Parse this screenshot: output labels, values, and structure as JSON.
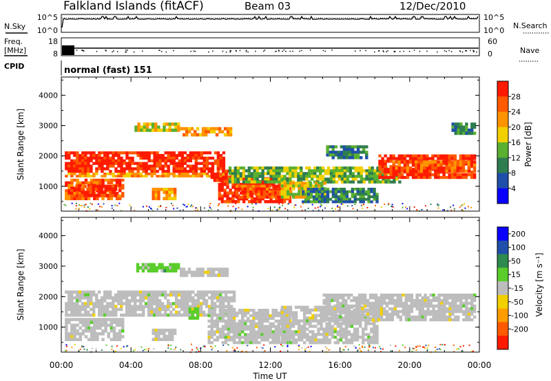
{
  "header": {
    "station": "Falkland Islands (fitACF)",
    "beam": "Beam 03",
    "date": "12/Dec/2010"
  },
  "top_panels": {
    "nsky": {
      "label": "N.Sky",
      "right_label": "N.Search",
      "left_ticks": [
        "10^5",
        "10^0"
      ],
      "right_ticks": [
        "10^5",
        "10^0"
      ]
    },
    "freq": {
      "label_line1": "Freq.",
      "label_line2": "[MHz]",
      "right_label": "Nave",
      "left_ticks": [
        "18",
        "8"
      ],
      "right_ticks": [
        "60",
        "0"
      ]
    },
    "cpid": {
      "label": "CPID",
      "text": "normal (fast) 151"
    }
  },
  "colors": {
    "power": [
      "#0a00ff",
      "#1f4faa",
      "#2e7d50",
      "#5ab030",
      "#f2d000",
      "#ff9400",
      "#ff5a00",
      "#ff1a00"
    ],
    "velocity": [
      "#ff1a00",
      "#ff5a00",
      "#ff9c00",
      "#f2d000",
      "#bdbdbd",
      "#5acd2b",
      "#2e8a4e",
      "#1f4faa",
      "#0a00ff"
    ],
    "gray": "#bdbdbd"
  },
  "chart_data": [
    {
      "type": "heatmap",
      "name_key": "power",
      "ylabel": "Slant Range [km]",
      "yticks": [
        1000,
        2000,
        3000,
        4000
      ],
      "ylim": [
        180,
        4600
      ],
      "xlim": [
        0,
        24
      ],
      "xticks": [
        "00:00",
        "04:00",
        "08:00",
        "12:00",
        "16:00",
        "20:00",
        "00:00"
      ],
      "colorbar": {
        "label": "Power [dB]",
        "ticks": [
          "4",
          "8",
          "12",
          "16",
          "20",
          "24",
          "28"
        ]
      },
      "bands": [
        {
          "t0": 0.2,
          "t1": 9.4,
          "r0": 1450,
          "r1": 2150,
          "level": 7
        },
        {
          "t0": 0.2,
          "t1": 9.4,
          "r0": 1300,
          "r1": 1450,
          "level": 5
        },
        {
          "t0": 0.2,
          "t1": 3.6,
          "r0": 550,
          "r1": 1250,
          "level": 6
        },
        {
          "t0": 0.8,
          "t1": 3.2,
          "r0": 650,
          "r1": 1050,
          "level": 7
        },
        {
          "t0": 5.2,
          "t1": 6.6,
          "r0": 550,
          "r1": 950,
          "level": 5
        },
        {
          "t0": 8.4,
          "t1": 10.2,
          "r0": 1150,
          "r1": 1550,
          "level": 7
        },
        {
          "t0": 9.0,
          "t1": 13.2,
          "r0": 450,
          "r1": 1300,
          "level": 7
        },
        {
          "t0": 10.0,
          "t1": 13.0,
          "r0": 600,
          "r1": 1050,
          "level": 6
        },
        {
          "t0": 9.6,
          "t1": 19.5,
          "r0": 1100,
          "r1": 1650,
          "level": 3
        },
        {
          "t0": 12.6,
          "t1": 15.2,
          "r0": 600,
          "r1": 1150,
          "level": 4
        },
        {
          "t0": 13.8,
          "t1": 18.2,
          "r0": 450,
          "r1": 950,
          "level": 2
        },
        {
          "t0": 18.2,
          "t1": 23.8,
          "r0": 1250,
          "r1": 2050,
          "level": 7
        },
        {
          "t0": 19.0,
          "t1": 23.8,
          "r0": 1450,
          "r1": 1850,
          "level": 6
        },
        {
          "t0": 4.2,
          "t1": 6.8,
          "r0": 2800,
          "r1": 3100,
          "level": 4
        },
        {
          "t0": 6.8,
          "t1": 9.8,
          "r0": 2650,
          "r1": 2950,
          "level": 5
        },
        {
          "t0": 15.2,
          "t1": 17.6,
          "r0": 1900,
          "r1": 2350,
          "level": 2
        },
        {
          "t0": 22.4,
          "t1": 23.8,
          "r0": 2700,
          "r1": 3100,
          "level": 2
        }
      ]
    },
    {
      "type": "heatmap",
      "name_key": "velocity",
      "ylabel": "Slant Range [km]",
      "yticks": [
        1000,
        2000,
        3000,
        4000
      ],
      "ylim": [
        180,
        4600
      ],
      "xlim": [
        0,
        24
      ],
      "xticks": [
        "00:00",
        "04:00",
        "08:00",
        "12:00",
        "16:00",
        "20:00",
        "00:00"
      ],
      "xlabel": "Time UT",
      "colorbar": {
        "label": "Velocity [m s⁻¹]",
        "ticks": [
          "200",
          "100",
          "50",
          "15",
          "-15",
          "-50",
          "-100",
          "-200"
        ]
      },
      "bands": [
        {
          "t0": 0.2,
          "t1": 10.0,
          "r0": 1350,
          "r1": 2200,
          "level": 4
        },
        {
          "t0": 0.2,
          "t1": 3.6,
          "r0": 550,
          "r1": 1300,
          "level": 4
        },
        {
          "t0": 5.2,
          "t1": 6.6,
          "r0": 550,
          "r1": 950,
          "level": 4
        },
        {
          "t0": 8.4,
          "t1": 13.2,
          "r0": 450,
          "r1": 1600,
          "level": 4
        },
        {
          "t0": 12.6,
          "t1": 18.2,
          "r0": 450,
          "r1": 1700,
          "level": 4
        },
        {
          "t0": 15.0,
          "t1": 23.8,
          "r0": 1200,
          "r1": 2100,
          "level": 4
        },
        {
          "t0": 7.3,
          "t1": 7.9,
          "r0": 1250,
          "r1": 1650,
          "level": 5
        },
        {
          "t0": 4.3,
          "t1": 6.8,
          "r0": 2800,
          "r1": 3100,
          "level": 5
        },
        {
          "t0": 6.8,
          "t1": 9.6,
          "r0": 2650,
          "r1": 2950,
          "level": 4
        }
      ]
    }
  ]
}
